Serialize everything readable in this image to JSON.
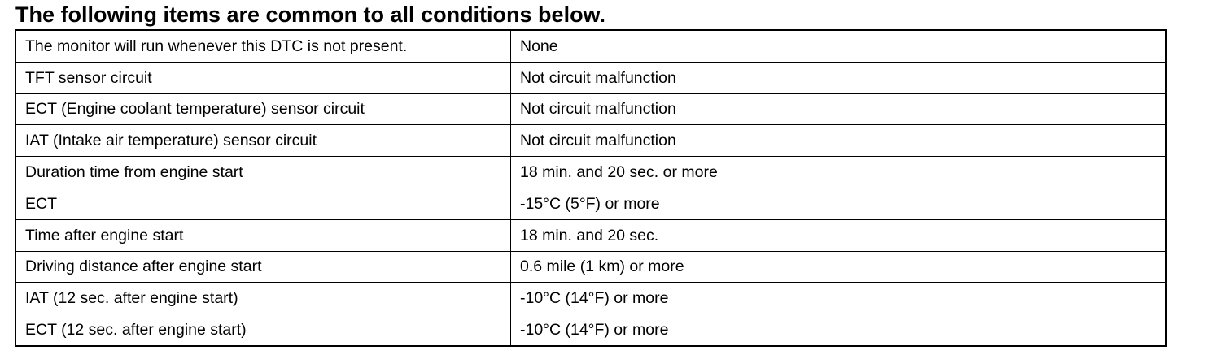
{
  "header": {
    "title": "The following items are common to all conditions below."
  },
  "table": {
    "rows": [
      [
        "The monitor will run whenever this DTC is not present.",
        "None"
      ],
      [
        "TFT sensor circuit",
        "Not circuit malfunction"
      ],
      [
        "ECT (Engine coolant temperature) sensor circuit",
        "Not circuit malfunction"
      ],
      [
        "IAT (Intake air temperature) sensor circuit",
        "Not circuit malfunction"
      ],
      [
        "Duration time from engine start",
        "18 min. and 20 sec. or more"
      ],
      [
        "ECT",
        "-15°C (5°F) or more"
      ],
      [
        "Time after engine start",
        "18 min. and 20 sec."
      ],
      [
        "Driving distance after engine start",
        "0.6 mile (1 km) or more"
      ],
      [
        "IAT (12 sec. after engine start)",
        "-10°C (14°F) or more"
      ],
      [
        "ECT (12 sec. after engine start)",
        "-10°C (14°F) or more"
      ]
    ]
  }
}
